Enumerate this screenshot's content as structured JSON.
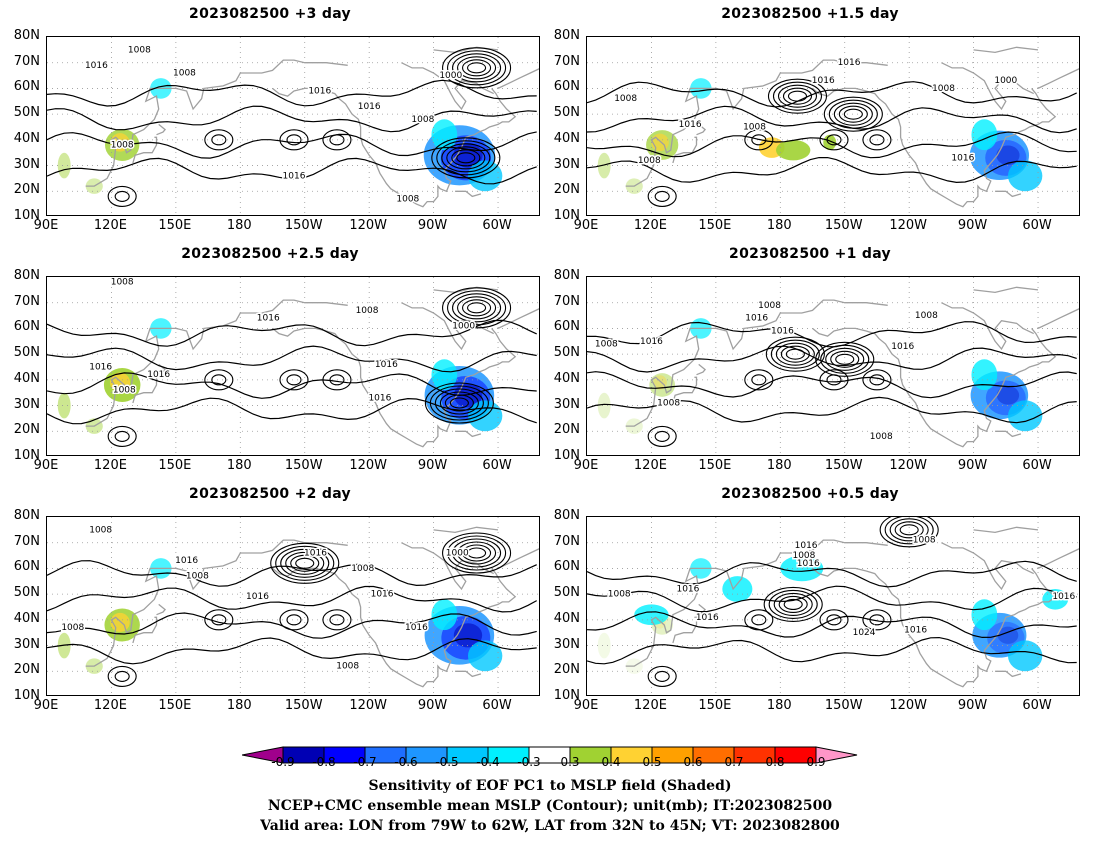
{
  "panels": [
    {
      "title": "2023082500  +3 day",
      "lat_blue": 0.95,
      "lat_green": 0.8,
      "lows": [
        [
          -70,
          68
        ],
        [
          -75,
          33
        ]
      ],
      "cyclone": "strong"
    },
    {
      "title": "2023082500  +1.5 day",
      "lat_blue": 0.6,
      "lat_green": 0.7,
      "lows": [
        [
          -172,
          57
        ],
        [
          -146,
          50
        ]
      ],
      "cyclone": "weak"
    },
    {
      "title": "2023082500  +2.5 day",
      "lat_blue": 0.9,
      "lat_green": 0.9,
      "lows": [
        [
          -70,
          68
        ],
        [
          -78,
          31
        ]
      ],
      "cyclone": "strong"
    },
    {
      "title": "2023082500  +1 day",
      "lat_blue": 0.55,
      "lat_green": 0.4,
      "lows": [
        [
          -173,
          50
        ],
        [
          -150,
          48
        ]
      ],
      "cyclone": "weak"
    },
    {
      "title": "2023082500  +2 day",
      "lat_blue": 0.9,
      "lat_green": 0.85,
      "lows": [
        [
          -70,
          66
        ],
        [
          -150,
          62
        ]
      ],
      "cyclone": "strong"
    },
    {
      "title": "2023082500  +0.5 day",
      "lat_blue": 0.45,
      "lat_green": 0.2,
      "lows": [
        [
          -174,
          46
        ],
        [
          -120,
          75
        ]
      ],
      "cyclone": "weak"
    }
  ],
  "axes": {
    "y_ticks": [
      "80N",
      "70N",
      "60N",
      "50N",
      "40N",
      "30N",
      "20N",
      "10N"
    ],
    "x_ticks": [
      "90E",
      "120E",
      "150E",
      "180",
      "150W",
      "120W",
      "90W",
      "60W"
    ],
    "lon_range": [
      90,
      320
    ],
    "lat_range": [
      10,
      80
    ]
  },
  "contour_labels": [
    "1000",
    "1008",
    "1016",
    "1024"
  ],
  "colorbar": {
    "ticks": [
      "-0.9",
      "-0.8",
      "-0.7",
      "-0.6",
      "-0.5",
      "-0.4",
      "-0.3",
      "0.3",
      "0.4",
      "0.5",
      "0.6",
      "0.7",
      "0.8",
      "0.9"
    ],
    "colors": [
      "#a0008c",
      "#0000b4",
      "#0000ff",
      "#1e6eff",
      "#1e96ff",
      "#00c8ff",
      "#00f0ff",
      "#ffffff",
      "#a0d232",
      "#ffd232",
      "#ffa000",
      "#ff6e00",
      "#ff3200",
      "#ff0000",
      "#ff96c8"
    ]
  },
  "caption": {
    "line1": "Sensitivity of EOF PC1 to MSLP field (Shaded)",
    "line2": "NCEP+CMC ensemble mean MSLP (Contour); unit(mb); IT:2023082500",
    "line3": "Valid area: LON from 79W to 62W, LAT from 32N to 45N; VT: 2023082800"
  }
}
